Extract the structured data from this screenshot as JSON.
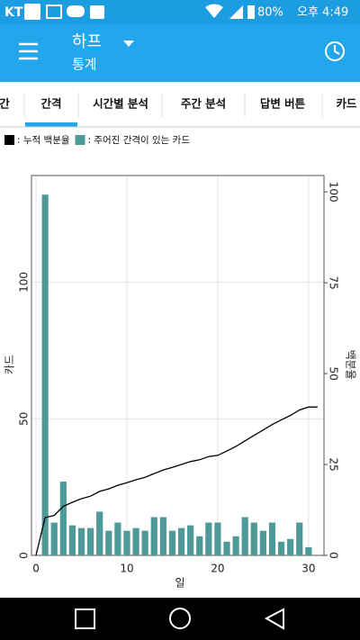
{
  "status_bar": {
    "carrier": "KT",
    "battery": "80%",
    "time": "오후 4:49"
  },
  "app_bar": {
    "title": "하프",
    "subtitle": "통계"
  },
  "tabs": [
    "간",
    "간격",
    "시간별 분석",
    "주간 분석",
    "답변 버튼",
    "카드"
  ],
  "chart_data": {
    "type": "bar",
    "x_label": "일",
    "y_label": "카드",
    "y2_label": "백분율",
    "xlim": [
      -0.5,
      31.7
    ],
    "xticks": [
      0,
      10,
      20,
      30
    ],
    "ylim": [
      0,
      139
    ],
    "yticks": [
      0,
      50,
      100
    ],
    "y2lim": [
      0,
      104.5
    ],
    "y2ticks": [
      0,
      25,
      50,
      75,
      100
    ],
    "grid": true,
    "series": [
      {
        "name": ": 누적 백분율",
        "type": "line",
        "axis": "y2",
        "color": "#000000",
        "x": [
          0,
          1,
          2,
          3,
          4,
          5,
          6,
          7,
          8,
          9,
          10,
          11,
          12,
          13,
          14,
          15,
          16,
          17,
          18,
          19,
          20,
          21,
          22,
          23,
          24,
          25,
          26,
          27,
          28,
          29,
          30,
          31
        ],
        "values": [
          0,
          10.4,
          11,
          13.5,
          14.6,
          15.6,
          16.3,
          17.6,
          18.3,
          19.3,
          20,
          20.8,
          21.5,
          22.5,
          23.5,
          24.2,
          25,
          25.8,
          26.3,
          27.2,
          27.5,
          28.7,
          30,
          31.5,
          33,
          34.5,
          36,
          37.3,
          38.5,
          40,
          40.8,
          40.8
        ]
      },
      {
        "name": ": 주어진 간격이 있는 카드",
        "type": "bar",
        "color": "#4e9a98",
        "x": [
          1,
          2,
          3,
          4,
          5,
          6,
          7,
          8,
          9,
          10,
          11,
          12,
          13,
          14,
          15,
          16,
          17,
          18,
          19,
          20,
          21,
          22,
          23,
          24,
          25,
          26,
          27,
          28,
          29,
          30
        ],
        "values": [
          132,
          12,
          27,
          11,
          10,
          10,
          16,
          9,
          12,
          9,
          10,
          9,
          14,
          14,
          9,
          10,
          11,
          7,
          12,
          12,
          5,
          7,
          14,
          12,
          9,
          12,
          5,
          6,
          12,
          3
        ]
      }
    ]
  }
}
